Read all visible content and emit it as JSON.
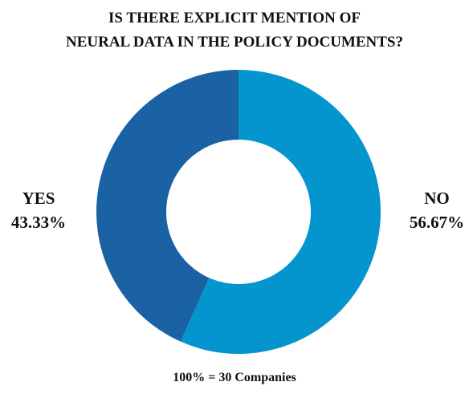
{
  "chart_data": {
    "type": "pie",
    "title_lines": [
      "IS THERE EXPLICIT MENTION OF",
      "NEURAL DATA IN THE POLICY DOCUMENTS?"
    ],
    "slices": [
      {
        "label": "NO",
        "value": 56.67,
        "value_label": "56.67%",
        "color": "#0495ce"
      },
      {
        "label": "YES",
        "value": 43.33,
        "value_label": "43.33%",
        "color": "#1a62a4"
      }
    ],
    "donut": true,
    "legend": "none",
    "footnote": "100% = 30 Companies"
  }
}
